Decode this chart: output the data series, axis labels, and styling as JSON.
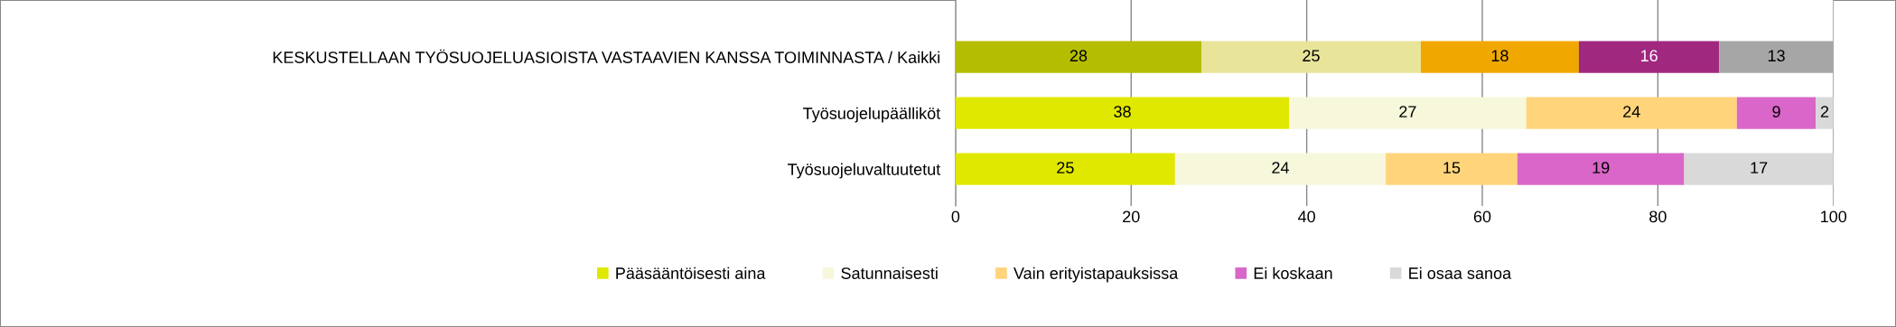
{
  "chart_data": {
    "type": "bar",
    "orientation": "horizontal",
    "stacked": true,
    "categories": [
      "KESKUSTELLAAN TYÖSUOJELUASIOISTA VASTAAVIEN KANSSA TOIMINNASTA / Kaikki",
      "Työsuojelupäälliköt",
      "Työsuojeluvaltuutetut"
    ],
    "series": [
      {
        "name": "Pääsääntöisesti aina",
        "color": "#e0e800",
        "colors": [
          "#b5bd00",
          "#e0e800",
          "#e0e800"
        ],
        "values": [
          28,
          38,
          25
        ]
      },
      {
        "name": "Satunnaisesti",
        "color": "#f7f7dc",
        "colors": [
          "#e8e49a",
          "#f7f7dc",
          "#f7f7dc"
        ],
        "values": [
          25,
          27,
          24
        ]
      },
      {
        "name": "Vain erityistapauksissa",
        "color": "#ffd47a",
        "colors": [
          "#f0a800",
          "#ffd47a",
          "#ffd47a"
        ],
        "values": [
          18,
          24,
          15
        ]
      },
      {
        "name": "Ei koskaan",
        "color": "#d966c8",
        "colors": [
          "#a0287f",
          "#d966c8",
          "#d966c8"
        ],
        "values": [
          16,
          9,
          19
        ]
      },
      {
        "name": "Ei osaa sanoa",
        "color": "#d9d9d9",
        "colors": [
          "#a6a6a6",
          "#d9d9d9",
          "#d9d9d9"
        ],
        "values": [
          13,
          2,
          17
        ]
      }
    ],
    "xlim": [
      0,
      100
    ],
    "xticks": [
      0,
      20,
      40,
      60,
      80,
      100
    ],
    "grid": "x",
    "legend": "bottom",
    "data_labels": true
  }
}
